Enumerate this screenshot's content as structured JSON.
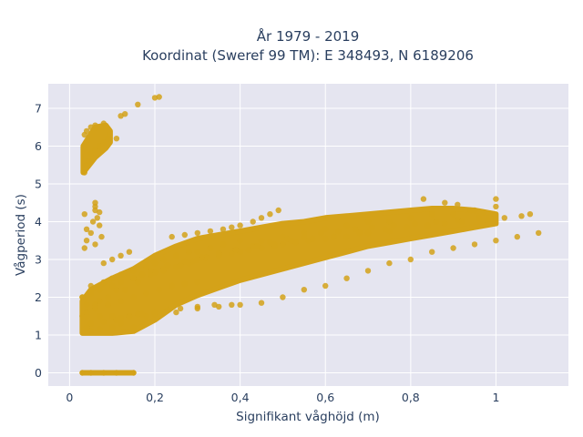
{
  "chart_data": {
    "type": "scatter",
    "title": "År 1979 - 2019",
    "subtitle": "Koordinat (Sweref 99 TM): E 348493, N 6189206",
    "xlabel": "Signifikant våghöjd (m)",
    "ylabel": "Vågperiod (s)",
    "xlim": [
      -0.05,
      1.17
    ],
    "ylim": [
      -0.35,
      7.65
    ],
    "x_ticks": [
      0,
      0.2,
      0.4,
      0.6,
      0.8,
      1
    ],
    "x_tick_labels": [
      "0",
      "0,2",
      "0,4",
      "0,6",
      "0,8",
      "1"
    ],
    "y_ticks": [
      0,
      1,
      2,
      3,
      4,
      5,
      6,
      7
    ],
    "y_tick_labels": [
      "0",
      "1",
      "2",
      "3",
      "4",
      "5",
      "6",
      "7"
    ],
    "grid": true,
    "marker_color": "#d4a219",
    "plot_background": "#e5e5f0",
    "series": [
      {
        "x": [
          0.03,
          0.05,
          0.08,
          0.11,
          0.15,
          0.035,
          0.04,
          0.045,
          0.05,
          0.06,
          0.07,
          0.08,
          0.09,
          0.035,
          0.04,
          0.05,
          0.06,
          0.08,
          0.035,
          0.06,
          0.075,
          0.21,
          0.2,
          0.16,
          0.13,
          0.12,
          0.11,
          0.04,
          0.07,
          0.055,
          0.065,
          0.035,
          0.06,
          0.04,
          0.05,
          0.06,
          0.07,
          0.06,
          0.03,
          0.04,
          0.05,
          0.03,
          0.04,
          0.07,
          0.1,
          0.12,
          0.15,
          0.04,
          0.07,
          0.1,
          0.12,
          0.14,
          0.16,
          0.18,
          0.2,
          0.22,
          0.25,
          0.3,
          0.35,
          0.4,
          0.45,
          0.5,
          0.55,
          0.6,
          0.65,
          0.7,
          0.75,
          0.8,
          0.85,
          0.9,
          0.95,
          1.0,
          1.05,
          1.1,
          0.05,
          0.08,
          0.1,
          0.12,
          0.15,
          0.18,
          0.2,
          0.22,
          0.25,
          0.28,
          0.3,
          0.33,
          0.36,
          0.4,
          0.45,
          0.5,
          0.55,
          0.6,
          0.65,
          0.7,
          0.75,
          0.8,
          0.85,
          0.9,
          0.95,
          1.0,
          0.03,
          0.05,
          0.07,
          0.1,
          0.12,
          0.15,
          0.17,
          0.2,
          0.22,
          0.25,
          0.28,
          0.3,
          0.32,
          0.35,
          0.38,
          0.4,
          0.42,
          0.45,
          0.48,
          0.5,
          0.53,
          0.56,
          0.6,
          0.65,
          0.7,
          0.75,
          0.04,
          0.06,
          0.09,
          0.12,
          0.15,
          0.18,
          0.21,
          0.24,
          0.27,
          0.3,
          0.05,
          0.08,
          0.11,
          0.14,
          0.17,
          0.2,
          0.23,
          0.26,
          0.3,
          0.34,
          0.38,
          0.24,
          0.27,
          0.3,
          0.33,
          0.36,
          0.38,
          0.4,
          0.43,
          0.45,
          0.47,
          0.49,
          0.08,
          0.1,
          0.12,
          0.14,
          0.06,
          0.09,
          0.13,
          0.16,
          0.19,
          0.22,
          0.26,
          0.29,
          0.32,
          0.35,
          0.39,
          0.43,
          0.47,
          0.51,
          0.55,
          0.59,
          0.63,
          0.67,
          0.71,
          0.76,
          0.81,
          0.86,
          0.91,
          0.96,
          0.07,
          0.11,
          0.15,
          0.19,
          0.23,
          0.27,
          0.31,
          0.35,
          0.39,
          0.44,
          0.48,
          0.52,
          0.57,
          0.62,
          0.68,
          0.74,
          0.79,
          0.84,
          0.88,
          0.92,
          0.98,
          1.02,
          1.06,
          1.08,
          0.83,
          0.88,
          0.91,
          0.94,
          0.97,
          1.0
        ],
        "y": [
          0,
          0,
          0,
          0,
          0,
          5.3,
          5.5,
          5.6,
          5.8,
          5.9,
          6.0,
          6.1,
          6.2,
          6.3,
          6.4,
          6.5,
          6.55,
          6.6,
          3.3,
          3.4,
          3.6,
          7.3,
          7.28,
          7.1,
          6.85,
          6.8,
          6.2,
          3.8,
          3.9,
          4.0,
          4.1,
          4.2,
          4.3,
          3.5,
          3.7,
          4.5,
          4.25,
          4.4,
          1.5,
          1.2,
          1.1,
          2.0,
          1.8,
          1.15,
          1.2,
          1.3,
          1.2,
          1.5,
          1.5,
          1.5,
          1.45,
          1.5,
          1.55,
          1.5,
          1.55,
          1.6,
          1.6,
          1.7,
          1.75,
          1.8,
          1.85,
          2.0,
          2.2,
          2.3,
          2.5,
          2.7,
          2.9,
          3.0,
          3.2,
          3.3,
          3.4,
          3.5,
          3.6,
          3.7,
          2.3,
          2.4,
          2.5,
          2.6,
          2.7,
          2.8,
          2.9,
          3.0,
          3.1,
          3.2,
          3.2,
          3.3,
          3.4,
          3.5,
          3.5,
          3.6,
          3.7,
          3.8,
          3.9,
          4.0,
          4.0,
          4.1,
          4.2,
          4.2,
          4.3,
          4.4,
          2.0,
          2.1,
          2.2,
          2.3,
          2.4,
          2.5,
          2.6,
          2.65,
          2.7,
          2.8,
          2.9,
          3.0,
          3.05,
          3.1,
          3.15,
          3.2,
          3.25,
          3.3,
          3.35,
          3.4,
          3.45,
          3.5,
          3.55,
          3.6,
          3.7,
          3.75,
          1.6,
          1.7,
          1.8,
          1.9,
          2.0,
          2.1,
          2.2,
          2.3,
          2.35,
          2.4,
          1.3,
          1.35,
          1.4,
          1.5,
          1.55,
          1.6,
          1.65,
          1.7,
          1.75,
          1.8,
          1.8,
          3.6,
          3.65,
          3.7,
          3.75,
          3.8,
          3.85,
          3.9,
          4.0,
          4.1,
          4.2,
          4.3,
          2.9,
          3.0,
          3.1,
          3.2,
          1.8,
          2.0,
          2.2,
          2.4,
          2.6,
          2.75,
          2.85,
          2.95,
          3.05,
          3.15,
          3.25,
          3.35,
          3.45,
          3.55,
          3.6,
          3.7,
          3.75,
          3.8,
          3.85,
          3.9,
          3.95,
          4.0,
          4.05,
          4.1,
          1.9,
          2.2,
          2.5,
          2.7,
          2.85,
          2.95,
          3.05,
          3.15,
          3.25,
          3.35,
          3.4,
          3.5,
          3.55,
          3.6,
          3.7,
          3.8,
          3.85,
          3.9,
          3.95,
          4.0,
          4.05,
          4.1,
          4.15,
          4.2,
          4.6,
          4.5,
          4.45,
          4.3,
          4.25,
          4.6
        ]
      }
    ]
  }
}
